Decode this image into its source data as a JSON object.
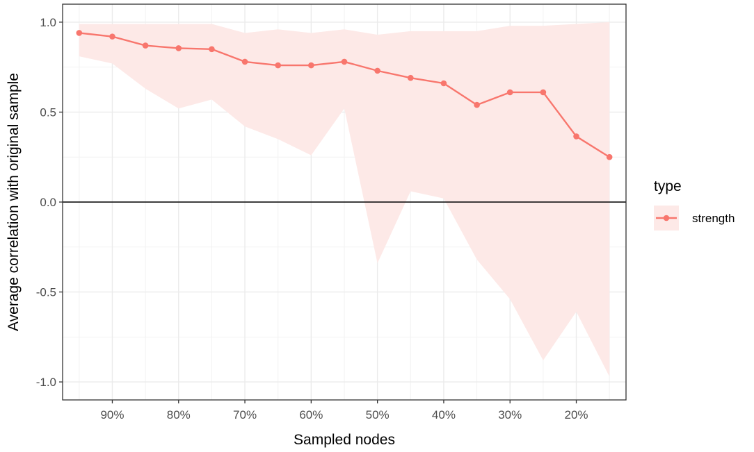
{
  "chart_data": {
    "type": "line",
    "xlabel": "Sampled nodes",
    "ylabel": "Average correlation with original sample",
    "x_tick_labels": [
      "90%",
      "80%",
      "70%",
      "60%",
      "50%",
      "40%",
      "30%",
      "20%"
    ],
    "x_tick_values": [
      0.9,
      0.8,
      0.7,
      0.6,
      0.5,
      0.4,
      0.3,
      0.2
    ],
    "x_reversed": true,
    "xlim": [
      0.975,
      0.125
    ],
    "ylim": [
      -1.1,
      1.1
    ],
    "y_tick_labels": [
      "-1.0",
      "-0.5",
      "0.0",
      "0.5",
      "1.0"
    ],
    "y_tick_values": [
      -1.0,
      -0.5,
      0.0,
      0.5,
      1.0
    ],
    "grid": true,
    "reference_line_y": 0,
    "legend": {
      "title": "type",
      "position": "right",
      "entries": [
        "strength"
      ]
    },
    "series": [
      {
        "name": "strength",
        "color": "#f8766d",
        "ribbon_color": "#fde9e7",
        "x": [
          0.95,
          0.9,
          0.85,
          0.8,
          0.75,
          0.7,
          0.65,
          0.6,
          0.55,
          0.5,
          0.45,
          0.4,
          0.35,
          0.3,
          0.25,
          0.2,
          0.15
        ],
        "values": [
          0.94,
          0.92,
          0.87,
          0.855,
          0.85,
          0.78,
          0.76,
          0.76,
          0.78,
          0.73,
          0.69,
          0.66,
          0.54,
          0.61,
          0.61,
          0.365,
          0.25
        ],
        "upper": [
          0.99,
          0.99,
          0.99,
          0.99,
          0.99,
          0.94,
          0.96,
          0.94,
          0.96,
          0.93,
          0.95,
          0.95,
          0.95,
          0.98,
          0.98,
          0.99,
          1.0
        ],
        "lower": [
          0.81,
          0.77,
          0.63,
          0.52,
          0.57,
          0.42,
          0.35,
          0.26,
          0.52,
          -0.34,
          0.06,
          0.02,
          -0.32,
          -0.54,
          -0.88,
          -0.61,
          -0.97
        ]
      }
    ]
  }
}
